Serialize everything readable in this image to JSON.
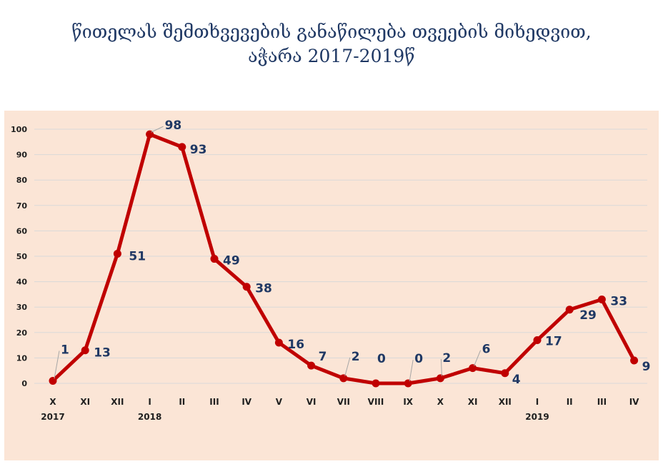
{
  "chart_data": {
    "type": "line",
    "title_line1": "წითელას შემთხვევების განაწილება თვეების მიხედვით,",
    "title_line2": "აჭარა 2017-2019წ",
    "categories": [
      "X",
      "XI",
      "XII",
      "I",
      "II",
      "III",
      "IV",
      "V",
      "VI",
      "VII",
      "VIII",
      "IX",
      "X",
      "XI",
      "XII",
      "I",
      "II",
      "III",
      "IV"
    ],
    "year_labels": [
      {
        "index": 0,
        "label": "2017"
      },
      {
        "index": 3,
        "label": "2018"
      },
      {
        "index": 15,
        "label": "2019"
      }
    ],
    "values": [
      1,
      13,
      51,
      98,
      93,
      49,
      38,
      16,
      7,
      2,
      0,
      0,
      2,
      6,
      4,
      17,
      29,
      33,
      9
    ],
    "data_labels": [
      "1",
      "13",
      "51",
      "98",
      "93",
      "49",
      "38",
      "16",
      "7",
      "2",
      "0",
      "0",
      "2",
      "6",
      "4",
      "17",
      "29",
      "33",
      "9"
    ],
    "ylim": [
      0,
      100
    ],
    "yticks": [
      0,
      10,
      20,
      30,
      40,
      50,
      60,
      70,
      80,
      90,
      100
    ],
    "grid": true,
    "legend": "none",
    "colors": {
      "line": "#c00000",
      "panel": "#fbe5d6",
      "grid": "#d9d9d9",
      "label": "#1f3864"
    }
  }
}
